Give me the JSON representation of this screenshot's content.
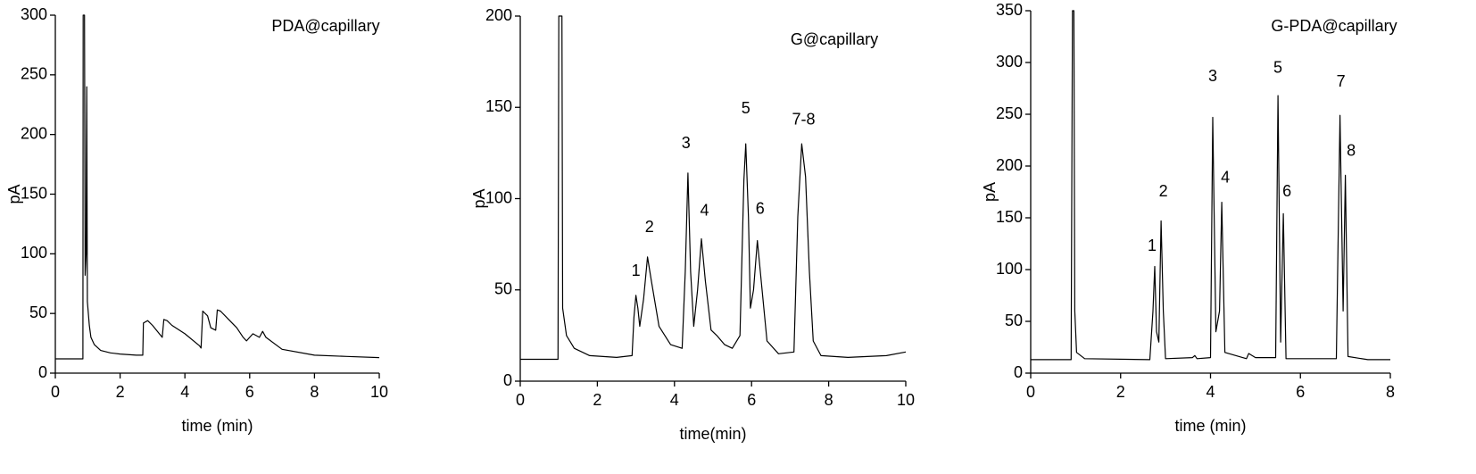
{
  "chart_data": [
    {
      "type": "line",
      "title": "PDA@capillary",
      "x_label": "time (min)",
      "y_label": "pA",
      "xlim": [
        0,
        10
      ],
      "xticks": [
        0,
        2,
        4,
        6,
        8,
        10
      ],
      "ylim": [
        0,
        300
      ],
      "yticks": [
        0,
        50,
        100,
        150,
        200,
        250,
        300
      ],
      "color": "#000000",
      "x": [
        0,
        0.85,
        0.86,
        0.9,
        0.92,
        0.95,
        0.97,
        0.99,
        1.05,
        1.1,
        1.2,
        1.4,
        1.7,
        2.0,
        2.5,
        2.7,
        2.72,
        2.85,
        3.0,
        3.3,
        3.35,
        3.45,
        3.6,
        4.0,
        4.45,
        4.5,
        4.55,
        4.7,
        4.8,
        4.95,
        5.0,
        5.1,
        5.6,
        5.8,
        5.9,
        6.0,
        6.1,
        6.3,
        6.4,
        6.5,
        7.0,
        8.0,
        9.0,
        10.0
      ],
      "values": [
        12,
        12,
        300,
        300,
        82,
        100,
        240,
        60,
        40,
        30,
        24,
        19,
        17,
        16,
        15,
        15,
        42,
        44,
        40,
        30,
        45,
        44,
        40,
        33,
        23,
        21,
        52,
        48,
        38,
        36,
        53,
        52,
        38,
        30,
        27,
        30,
        33,
        30,
        35,
        30,
        20,
        15,
        14,
        13
      ]
    },
    {
      "type": "line",
      "title": "G@capillary",
      "x_label": "time(min)",
      "y_label": "pA",
      "xlim": [
        0,
        10
      ],
      "xticks": [
        0,
        2,
        4,
        6,
        8,
        10
      ],
      "ylim": [
        0,
        200
      ],
      "yticks": [
        0,
        50,
        100,
        150,
        200
      ],
      "color": "#000000",
      "x": [
        0,
        0.98,
        1.0,
        1.08,
        1.1,
        1.2,
        1.4,
        1.8,
        2.5,
        2.9,
        2.95,
        3.0,
        3.05,
        3.1,
        3.2,
        3.3,
        3.4,
        3.6,
        3.9,
        4.2,
        4.28,
        4.35,
        4.42,
        4.5,
        4.6,
        4.7,
        4.8,
        4.95,
        5.1,
        5.3,
        5.5,
        5.7,
        5.8,
        5.85,
        5.92,
        5.97,
        6.05,
        6.15,
        6.25,
        6.4,
        6.7,
        7.1,
        7.2,
        7.3,
        7.4,
        7.5,
        7.6,
        7.8,
        8.5,
        9.5,
        10.0
      ],
      "values": [
        12,
        12,
        200,
        200,
        40,
        25,
        18,
        14,
        13,
        14,
        35,
        47,
        40,
        30,
        45,
        68,
        55,
        30,
        20,
        18,
        60,
        114,
        60,
        30,
        50,
        78,
        55,
        28,
        25,
        20,
        18,
        25,
        110,
        130,
        90,
        40,
        50,
        77,
        55,
        22,
        15,
        16,
        90,
        130,
        112,
        60,
        22,
        14,
        13,
        14,
        16
      ],
      "annotations": [
        {
          "text": "1",
          "x": 3.0,
          "y": 60
        },
        {
          "text": "2",
          "x": 3.35,
          "y": 84
        },
        {
          "text": "3",
          "x": 4.3,
          "y": 130
        },
        {
          "text": "4",
          "x": 4.78,
          "y": 93
        },
        {
          "text": "5",
          "x": 5.85,
          "y": 149
        },
        {
          "text": "6",
          "x": 6.22,
          "y": 94
        },
        {
          "text": "7-8",
          "x": 7.35,
          "y": 143
        }
      ]
    },
    {
      "type": "line",
      "title": "G-PDA@capillary",
      "x_label": "time (min)",
      "y_label": "pA",
      "xlim": [
        0,
        8
      ],
      "xticks": [
        0,
        2,
        4,
        6,
        8
      ],
      "ylim": [
        0,
        350
      ],
      "yticks": [
        0,
        50,
        100,
        150,
        200,
        250,
        300,
        350
      ],
      "color": "#000000",
      "x": [
        0,
        0.9,
        0.93,
        0.96,
        0.98,
        1.02,
        1.2,
        2.65,
        2.72,
        2.76,
        2.8,
        2.85,
        2.9,
        2.95,
        3.0,
        3.6,
        3.65,
        3.7,
        4.0,
        4.05,
        4.12,
        4.2,
        4.25,
        4.32,
        4.8,
        4.85,
        5.0,
        5.45,
        5.5,
        5.56,
        5.62,
        5.68,
        6.8,
        6.88,
        6.95,
        7.0,
        7.06,
        7.5,
        8.0
      ],
      "values": [
        13,
        13,
        350,
        350,
        60,
        20,
        14,
        13,
        60,
        103,
        40,
        30,
        147,
        60,
        14,
        15,
        17,
        14,
        15,
        247,
        40,
        60,
        165,
        20,
        14,
        19,
        15,
        15,
        268,
        30,
        154,
        14,
        14,
        249,
        60,
        191,
        16,
        13,
        13
      ],
      "annotations": [
        {
          "text": "1",
          "x": 2.7,
          "y": 122
        },
        {
          "text": "2",
          "x": 2.95,
          "y": 175
        },
        {
          "text": "3",
          "x": 4.05,
          "y": 286
        },
        {
          "text": "4",
          "x": 4.33,
          "y": 188
        },
        {
          "text": "5",
          "x": 5.5,
          "y": 294
        },
        {
          "text": "6",
          "x": 5.7,
          "y": 175
        },
        {
          "text": "7",
          "x": 6.9,
          "y": 281
        },
        {
          "text": "8",
          "x": 7.13,
          "y": 214
        }
      ]
    }
  ]
}
